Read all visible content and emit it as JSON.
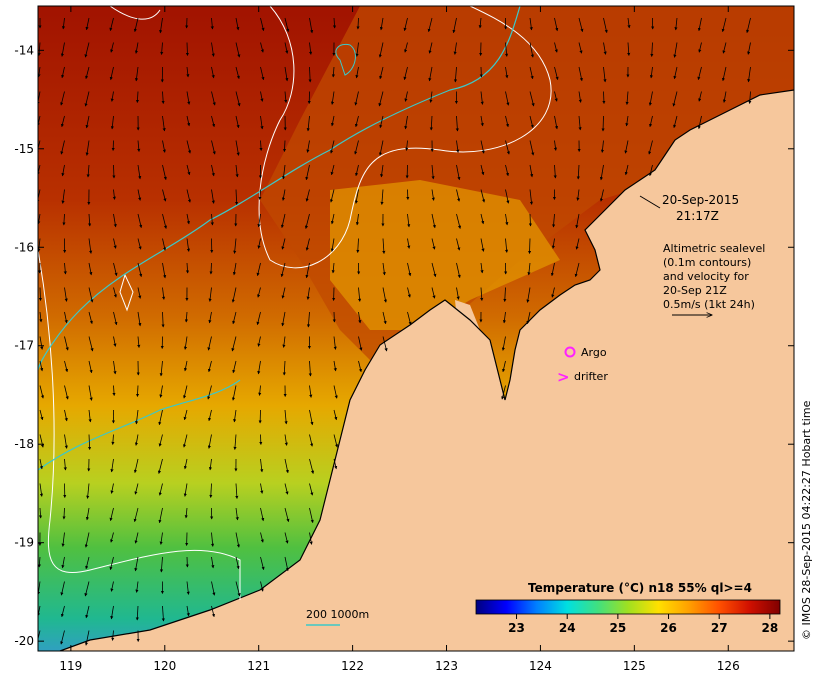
{
  "map": {
    "x_ticks": [
      "119",
      "120",
      "121",
      "122",
      "123",
      "124",
      "125",
      "126"
    ],
    "y_ticks": [
      "-14",
      "-15",
      "-16",
      "-17",
      "-18",
      "-19",
      "-20"
    ],
    "lon_range": [
      118.65,
      126.7
    ],
    "lat_range": [
      -20.1,
      -13.55
    ],
    "colors": {
      "land": "#f6c79c",
      "hot": "#a11300",
      "contour_white": "#ffffff",
      "contour_cyan": "#3cc8c8",
      "argo": "#ff22ff",
      "drifter": "#ff22ff"
    }
  },
  "annotations": {
    "date": "20-Sep-2015",
    "time": "21:17Z",
    "alt_line1": "Altimetric sealevel",
    "alt_line2": "(0.1m contours)",
    "alt_line3": "and velocity for",
    "alt_line4": "20-Sep 21Z",
    "alt_line5": "0.5m/s (1kt 24h)",
    "argo_label": "Argo",
    "drifter_label": "drifter",
    "drifter_symbol": ">",
    "isobath_label": "200  1000m"
  },
  "colorbar": {
    "title": "Temperature (°C) n18 55% ql>=4",
    "ticks": [
      "23",
      "24",
      "25",
      "26",
      "27",
      "28"
    ],
    "range": [
      22.2,
      28.2
    ],
    "stops": [
      "#00007f",
      "#0000ff",
      "#0080ff",
      "#00e0e0",
      "#40e080",
      "#a0e020",
      "#ffe000",
      "#ffa000",
      "#ff5000",
      "#d01000",
      "#800000"
    ]
  },
  "credit": "© IMOS 28-Sep-2015 04:22:27 Hobart time"
}
